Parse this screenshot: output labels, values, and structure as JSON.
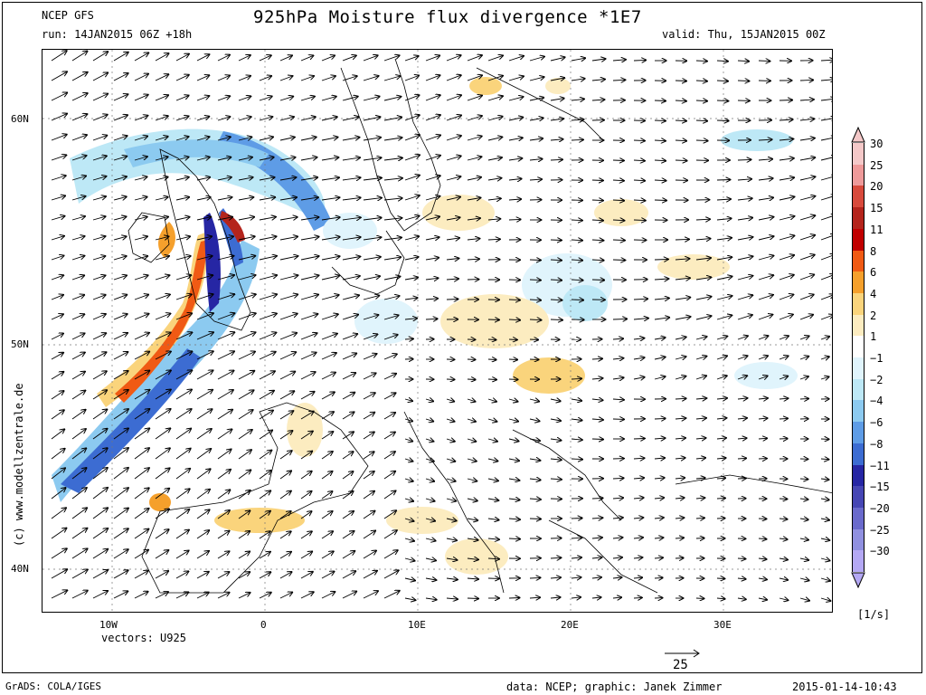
{
  "header": {
    "model": "NCEP GFS",
    "run": "run: 14JAN2015 06Z +18h",
    "title": "925hPa Moisture flux divergence *1E7",
    "valid": "valid: Thu, 15JAN2015 00Z"
  },
  "axes": {
    "lat_labels": [
      "60N",
      "50N",
      "40N"
    ],
    "lon_labels": [
      "10W",
      "0",
      "10E",
      "20E",
      "30E"
    ]
  },
  "vectors_label": "vectors: U925",
  "reference_vector": "25",
  "units": "[1/s]",
  "watermark": "(c) www.modellzentrale.de",
  "colorbar": {
    "labels": [
      "30",
      "25",
      "20",
      "15",
      "11",
      "8",
      "6",
      "4",
      "2",
      "1",
      "−1",
      "−2",
      "−4",
      "−6",
      "−8",
      "−11",
      "−15",
      "−20",
      "−25",
      "−30"
    ],
    "colors": [
      "#f4c8c8",
      "#ee9a9a",
      "#d84a3c",
      "#b4241c",
      "#c00000",
      "#f05a14",
      "#f5a02c",
      "#fad47c",
      "#fcecc0",
      "#ffffff",
      "#e0f4fc",
      "#bde8f6",
      "#8ccaf0",
      "#5e9ce6",
      "#3c6cd2",
      "#2626a4",
      "#4646b4",
      "#6a6acc",
      "#9090e0",
      "#b4a8f4"
    ]
  },
  "footer": {
    "grads": "GrADS: COLA/IGES",
    "credit": "data: NCEP; graphic: Janek Zimmer",
    "timestamp": "2015-01-14-10:43"
  }
}
